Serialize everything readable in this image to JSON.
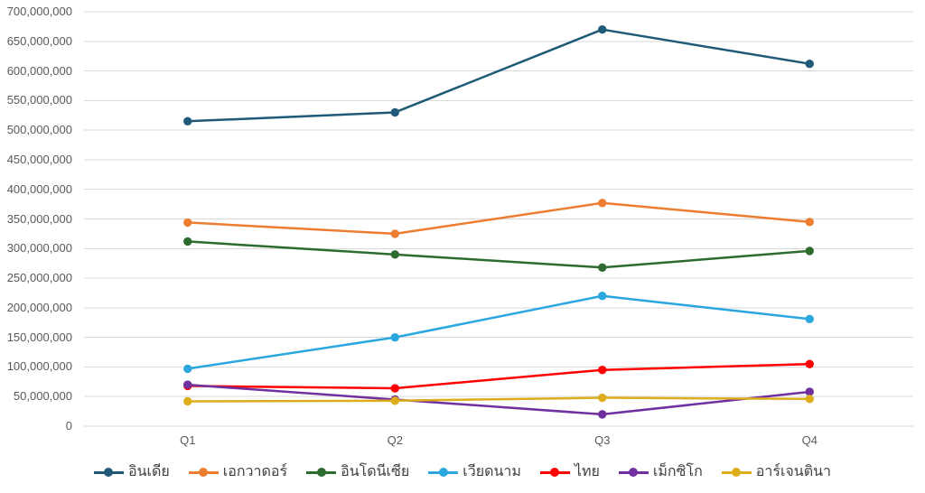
{
  "chart_data": {
    "type": "line",
    "title": "",
    "categories": [
      "Q1",
      "Q2",
      "Q3",
      "Q4"
    ],
    "series": [
      {
        "name": "อินเดีย",
        "color": "#1F5B78",
        "values": [
          515000000,
          530000000,
          670000000,
          612000000
        ]
      },
      {
        "name": "เอกวาดอร์",
        "color": "#ED7D31",
        "values": [
          344000000,
          325000000,
          377000000,
          345000000
        ]
      },
      {
        "name": "อินโดนีเซีย",
        "color": "#2E6B2E",
        "values": [
          312000000,
          290000000,
          268000000,
          296000000
        ]
      },
      {
        "name": "เวียดนาม",
        "color": "#29A7DE",
        "values": [
          97000000,
          150000000,
          220000000,
          181000000
        ]
      },
      {
        "name": "ไทย",
        "color": "#FF0000",
        "values": [
          68000000,
          64000000,
          95000000,
          105000000
        ]
      },
      {
        "name": "เม็กซิโก",
        "color": "#7030A0",
        "values": [
          70000000,
          45000000,
          20000000,
          58000000
        ]
      },
      {
        "name": "อาร์เจนตินา",
        "color": "#DDAD1B",
        "values": [
          42000000,
          43000000,
          48000000,
          46000000
        ]
      }
    ],
    "y_axis": {
      "min": 0,
      "max": 700000000,
      "step": 50000000,
      "tick_labels": [
        "700,000,000",
        "650,000,000",
        "600,000,000",
        "550,000,000",
        "500,000,000",
        "450,000,000",
        "400,000,000",
        "350,000,000",
        "300,000,000",
        "250,000,000",
        "200,000,000",
        "150,000,000",
        "100,000,000",
        "50,000,000",
        "0"
      ]
    },
    "grid": true,
    "legend_position": "bottom"
  },
  "colors": {
    "gridline": "#D9D9D9",
    "axis_text": "#595959",
    "legend_text": "#404040",
    "background": "#FFFFFF"
  }
}
